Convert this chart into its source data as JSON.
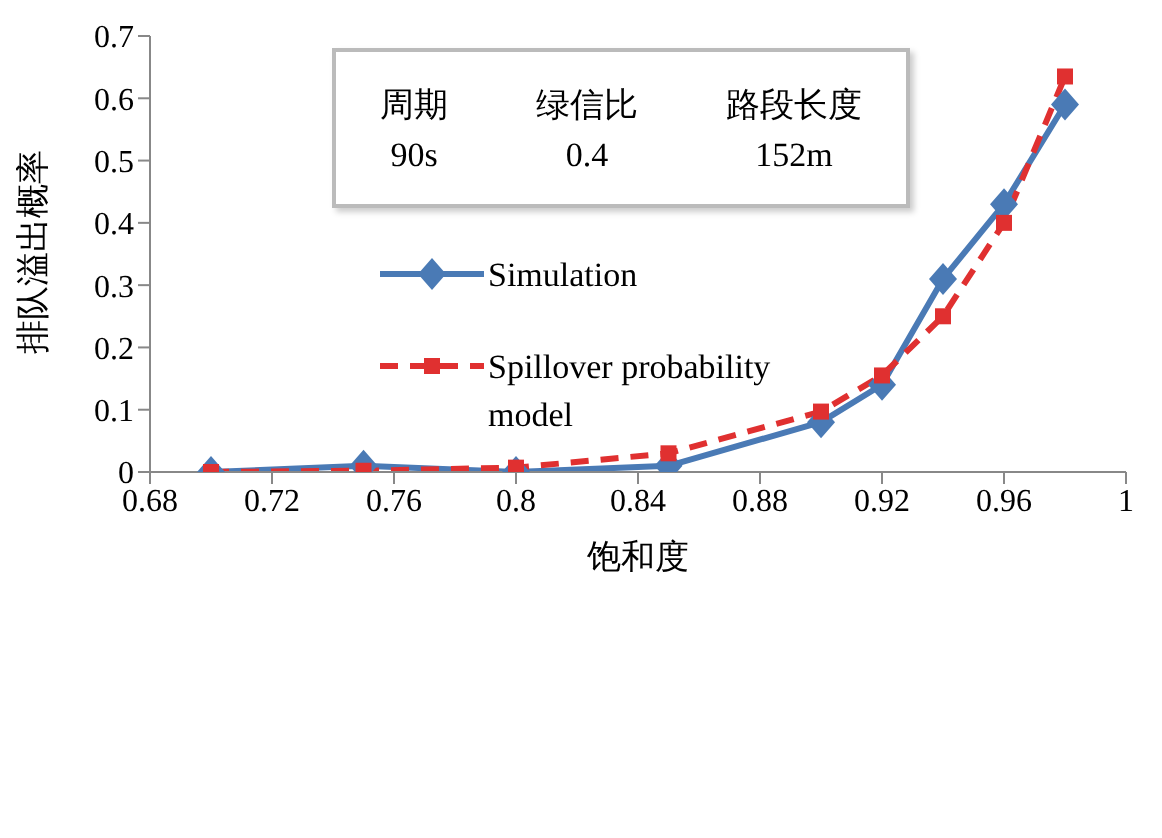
{
  "chart_data": {
    "type": "line",
    "xlabel": "饱和度",
    "ylabel": "排队溢出概率",
    "annotations": [
      "周期",
      "绿信比",
      "路段长度",
      "90s",
      "0.4",
      "152m"
    ],
    "xlim": [
      0.68,
      1
    ],
    "xticks": [
      0.68,
      0.72,
      0.76,
      0.8,
      0.84,
      0.88,
      0.92,
      0.96,
      1
    ],
    "ylim": [
      0,
      0.7
    ],
    "yticks": [
      0,
      0.1,
      0.2,
      0.3,
      0.4,
      0.5,
      0.6,
      0.7
    ],
    "grid": false,
    "legend": "left",
    "series": [
      {
        "name": "Simulation",
        "color": "#4a7ab5",
        "marker": "diamond",
        "line_style": "solid",
        "x": [
          0.7,
          0.75,
          0.8,
          0.85,
          0.9,
          0.92,
          0.94,
          0.96,
          0.98
        ],
        "values": [
          0,
          0.01,
          0,
          0.01,
          0.08,
          0.14,
          0.31,
          0.43,
          0.59
        ]
      },
      {
        "name": "Spillover probability model",
        "color": "#e03030",
        "marker": "square",
        "line_style": "dashed",
        "x": [
          0.7,
          0.75,
          0.8,
          0.85,
          0.9,
          0.92,
          0.94,
          0.96,
          0.98
        ],
        "values": [
          0,
          0.002,
          0.007,
          0.03,
          0.097,
          0.155,
          0.25,
          0.4,
          0.635
        ]
      }
    ]
  }
}
